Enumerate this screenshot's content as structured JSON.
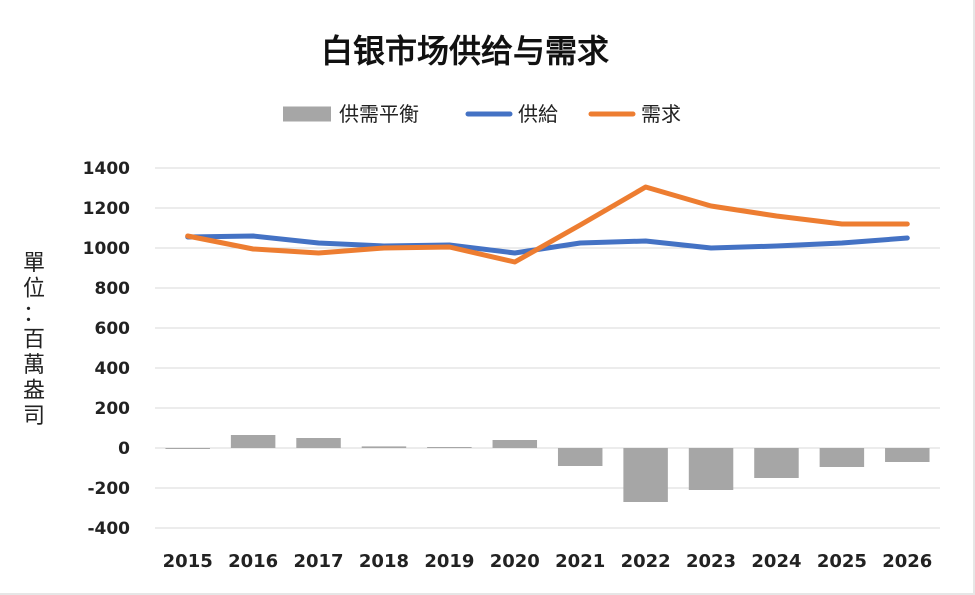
{
  "chart_data": {
    "type": "bar+line",
    "title": "白银市场供给与需求",
    "ylabel": "單位：百萬盎司",
    "ylim": [
      -400,
      1400
    ],
    "y_ticks": [
      1400,
      1200,
      1000,
      800,
      600,
      400,
      200,
      0,
      -200,
      -400
    ],
    "categories": [
      "2015",
      "2016",
      "2017",
      "2018",
      "2019",
      "2020",
      "2021",
      "2022",
      "2023",
      "2024",
      "2025",
      "2026"
    ],
    "grid": true,
    "legend_position": "top",
    "series": [
      {
        "name": "供需平衡",
        "kind": "bar",
        "color": "#a6a6a6",
        "values": [
          -5,
          65,
          50,
          8,
          5,
          40,
          -90,
          -270,
          -210,
          -150,
          -95,
          -70
        ]
      },
      {
        "name": "供給",
        "kind": "line",
        "color": "#4472c4",
        "values": [
          1055,
          1060,
          1025,
          1010,
          1015,
          975,
          1025,
          1035,
          1000,
          1010,
          1025,
          1050
        ]
      },
      {
        "name": "需求",
        "kind": "line",
        "color": "#ed7d31",
        "values": [
          1060,
          995,
          975,
          1000,
          1005,
          930,
          1115,
          1305,
          1210,
          1160,
          1120,
          1120
        ]
      }
    ]
  }
}
